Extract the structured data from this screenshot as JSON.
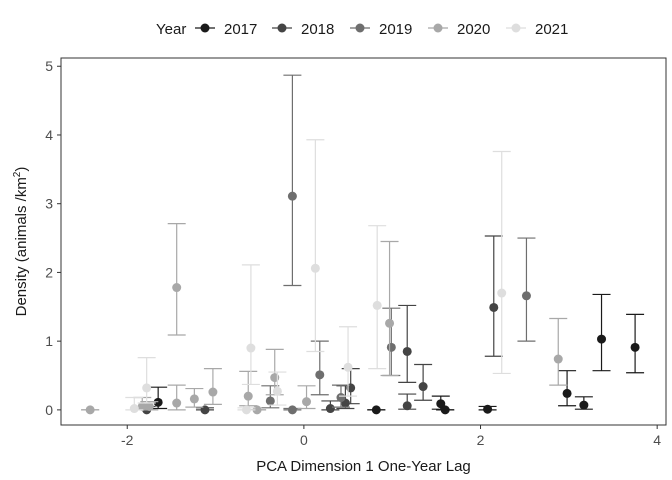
{
  "chart_data": {
    "type": "scatter",
    "title": "",
    "xlabel": "PCA Dimension 1 One-Year Lag",
    "ylabel_main": "Density (animals /km",
    "ylabel_sup": "2",
    "ylabel_end": ")",
    "xlim": [
      -2.75,
      4.1
    ],
    "ylim": [
      -0.22,
      5.12
    ],
    "x_ticks": [
      -2,
      0,
      2,
      4
    ],
    "y_ticks": [
      0,
      1,
      2,
      3,
      4,
      5
    ],
    "grid": false,
    "legend": {
      "position": "top",
      "title": "Year",
      "entries": [
        "2017",
        "2018",
        "2019",
        "2020",
        "2021"
      ]
    },
    "series": [
      {
        "name": "2017",
        "color": "#1a1a1a",
        "points": [
          {
            "x": -1.65,
            "y": 0.11,
            "lo": 0.02,
            "hi": 0.33
          },
          {
            "x": 0.82,
            "y": 0.0,
            "lo": 0.0,
            "hi": 0.0
          },
          {
            "x": 1.55,
            "y": 0.09,
            "lo": 0.01,
            "hi": 0.2
          },
          {
            "x": 1.6,
            "y": 0.0,
            "lo": 0.0,
            "hi": 0.0
          },
          {
            "x": 2.08,
            "y": 0.01,
            "lo": 0.0,
            "hi": 0.05
          },
          {
            "x": 2.98,
            "y": 0.24,
            "lo": 0.06,
            "hi": 0.57
          },
          {
            "x": 3.17,
            "y": 0.07,
            "lo": 0.01,
            "hi": 0.19
          },
          {
            "x": 3.37,
            "y": 1.03,
            "lo": 0.57,
            "hi": 1.68
          },
          {
            "x": 3.75,
            "y": 0.91,
            "lo": 0.54,
            "hi": 1.39
          }
        ]
      },
      {
        "name": "2018",
        "color": "#444444",
        "points": [
          {
            "x": -1.78,
            "y": 0.0,
            "lo": 0.0,
            "hi": 0.05
          },
          {
            "x": -1.12,
            "y": 0.0,
            "lo": 0.0,
            "hi": 0.03
          },
          {
            "x": 0.3,
            "y": 0.02,
            "lo": 0.0,
            "hi": 0.13
          },
          {
            "x": 0.47,
            "y": 0.1,
            "lo": 0.02,
            "hi": 0.35
          },
          {
            "x": 0.53,
            "y": 0.32,
            "lo": 0.09,
            "hi": 0.6
          },
          {
            "x": 1.17,
            "y": 0.85,
            "lo": 0.4,
            "hi": 1.52
          },
          {
            "x": 1.17,
            "y": 0.06,
            "lo": 0.01,
            "hi": 0.23
          },
          {
            "x": 1.35,
            "y": 0.34,
            "lo": 0.14,
            "hi": 0.66
          },
          {
            "x": 2.15,
            "y": 1.49,
            "lo": 0.78,
            "hi": 2.53
          }
        ]
      },
      {
        "name": "2019",
        "color": "#6e6e6e",
        "points": [
          {
            "x": -0.38,
            "y": 0.13,
            "lo": 0.03,
            "hi": 0.35
          },
          {
            "x": -0.13,
            "y": 0.0,
            "lo": 0.0,
            "hi": 0.02
          },
          {
            "x": -0.13,
            "y": 3.11,
            "lo": 1.81,
            "hi": 4.87
          },
          {
            "x": 0.18,
            "y": 0.51,
            "lo": 0.22,
            "hi": 1.0
          },
          {
            "x": 0.42,
            "y": 0.18,
            "lo": 0.04,
            "hi": 0.36
          },
          {
            "x": 0.99,
            "y": 0.91,
            "lo": 0.5,
            "hi": 1.48
          },
          {
            "x": 2.52,
            "y": 1.66,
            "lo": 1.0,
            "hi": 2.5
          }
        ]
      },
      {
        "name": "2020",
        "color": "#a8a8a8",
        "points": [
          {
            "x": -2.42,
            "y": 0.0,
            "lo": 0.0,
            "hi": 0.0
          },
          {
            "x": -1.83,
            "y": 0.05,
            "lo": 0.0,
            "hi": 0.18
          },
          {
            "x": -1.75,
            "y": 0.05,
            "lo": 0.0,
            "hi": 0.12
          },
          {
            "x": -1.44,
            "y": 1.78,
            "lo": 1.09,
            "hi": 2.71
          },
          {
            "x": -1.44,
            "y": 0.1,
            "lo": 0.0,
            "hi": 0.36
          },
          {
            "x": -1.24,
            "y": 0.16,
            "lo": 0.04,
            "hi": 0.31
          },
          {
            "x": -1.03,
            "y": 0.26,
            "lo": 0.08,
            "hi": 0.6
          },
          {
            "x": -0.63,
            "y": 0.2,
            "lo": 0.06,
            "hi": 0.56
          },
          {
            "x": -0.53,
            "y": 0.0,
            "lo": 0.0,
            "hi": 0.0
          },
          {
            "x": -0.33,
            "y": 0.47,
            "lo": 0.22,
            "hi": 0.88
          },
          {
            "x": 0.03,
            "y": 0.12,
            "lo": 0.02,
            "hi": 0.35
          },
          {
            "x": 0.97,
            "y": 1.26,
            "lo": 0.5,
            "hi": 2.45
          },
          {
            "x": 2.88,
            "y": 0.74,
            "lo": 0.36,
            "hi": 1.33
          }
        ]
      },
      {
        "name": "2021",
        "color": "#dedede",
        "points": [
          {
            "x": -1.92,
            "y": 0.02,
            "lo": 0.0,
            "hi": 0.18
          },
          {
            "x": -1.78,
            "y": 0.32,
            "lo": 0.1,
            "hi": 0.76
          },
          {
            "x": -0.65,
            "y": 0.0,
            "lo": 0.0,
            "hi": 0.03
          },
          {
            "x": -0.6,
            "y": 0.9,
            "lo": 0.37,
            "hi": 2.11
          },
          {
            "x": -0.3,
            "y": 0.27,
            "lo": 0.07,
            "hi": 0.55
          },
          {
            "x": 0.13,
            "y": 2.06,
            "lo": 0.85,
            "hi": 3.93
          },
          {
            "x": 0.5,
            "y": 0.62,
            "lo": 0.2,
            "hi": 1.21
          },
          {
            "x": 0.83,
            "y": 1.52,
            "lo": 0.6,
            "hi": 2.68
          },
          {
            "x": 2.24,
            "y": 1.7,
            "lo": 0.53,
            "hi": 3.76
          }
        ]
      }
    ]
  }
}
